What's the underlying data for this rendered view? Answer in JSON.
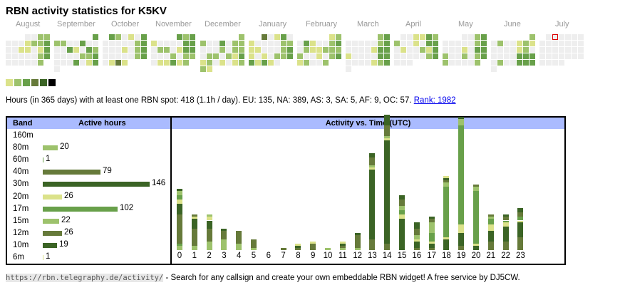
{
  "title": "RBN activity statistics for K5KV",
  "palette": [
    "#eeeeee",
    "#dbe28a",
    "#9dc26c",
    "#68a04a",
    "#667a3a",
    "#3b6425",
    "#000000"
  ],
  "today_marker_color": "#dd0000",
  "months": [
    {
      "label": "August",
      "rows": [
        [
          null,
          null,
          null,
          0,
          0,
          2,
          2
        ],
        [
          0,
          0,
          0,
          1,
          2,
          2,
          3
        ],
        [
          0,
          0,
          1,
          1,
          0,
          1,
          3
        ],
        [
          0,
          0,
          0,
          0,
          0,
          2,
          3
        ],
        [
          0,
          0,
          0,
          0,
          0,
          2,
          null
        ]
      ]
    },
    {
      "label": "September",
      "rows": [
        [
          null,
          null,
          null,
          null,
          null,
          null,
          3
        ],
        [
          2,
          2,
          0,
          0,
          3,
          0,
          0
        ],
        [
          0,
          0,
          3,
          1,
          0,
          3,
          2
        ],
        [
          0,
          0,
          0,
          0,
          2,
          2,
          3
        ],
        [
          0,
          0,
          0,
          3,
          0,
          1,
          3
        ],
        [
          0
        ]
      ]
    },
    {
      "label": "October",
      "rows": [
        [
          null,
          3,
          2,
          0,
          1,
          0,
          3
        ],
        [
          0,
          0,
          0,
          0,
          0,
          2,
          3
        ],
        [
          0,
          0,
          0,
          1,
          0,
          2,
          3
        ],
        [
          0,
          0,
          0,
          0,
          0,
          2,
          3
        ],
        [
          0,
          1,
          4,
          1
        ]
      ]
    },
    {
      "label": "November",
      "rows": [
        [
          null,
          null,
          null,
          null,
          3,
          2,
          3
        ],
        [
          1,
          0,
          0,
          0,
          0,
          3,
          3
        ],
        [
          0,
          2,
          2,
          0,
          1,
          3,
          3
        ],
        [
          0,
          0,
          0,
          2,
          0,
          2,
          2
        ],
        [
          0,
          1,
          1,
          3,
          1,
          2
        ]
      ]
    },
    {
      "label": "December",
      "rows": [
        [
          null,
          null,
          null,
          null,
          null,
          null,
          2
        ],
        [
          2,
          0,
          0,
          3,
          0,
          2,
          2
        ],
        [
          0,
          0,
          0,
          2,
          0,
          2,
          2
        ],
        [
          0,
          2,
          2,
          0,
          2,
          1,
          3
        ],
        [
          1,
          2,
          0,
          1,
          0,
          1,
          2
        ],
        [
          2,
          1
        ]
      ]
    },
    {
      "label": "January",
      "rows": [
        [
          null,
          null,
          4,
          0,
          1,
          3,
          0
        ],
        [
          1,
          0,
          0,
          0,
          0,
          2,
          2
        ],
        [
          1,
          1,
          0,
          0,
          0,
          2,
          3
        ],
        [
          1,
          0,
          1,
          0,
          2,
          2,
          3
        ],
        [
          3,
          1,
          3,
          1,
          0
        ]
      ]
    },
    {
      "label": "February",
      "rows": [
        [
          null,
          null,
          null,
          null,
          null,
          1,
          2
        ],
        [
          0,
          3,
          1,
          0,
          0,
          2,
          3
        ],
        [
          0,
          2,
          1,
          1,
          2,
          2,
          2
        ],
        [
          2,
          0,
          0,
          1,
          0,
          2,
          3
        ],
        [
          1,
          2,
          0,
          0,
          2
        ]
      ]
    },
    {
      "label": "March",
      "rows": [
        [
          null,
          null,
          null,
          null,
          null,
          2,
          3
        ],
        [
          0,
          0,
          0,
          0,
          0,
          2,
          3
        ],
        [
          0,
          0,
          0,
          0,
          1,
          3,
          3
        ],
        [
          1,
          0,
          0,
          0,
          0,
          3,
          3
        ],
        [
          0,
          0,
          0,
          0,
          1,
          2,
          3
        ],
        [
          0
        ]
      ]
    },
    {
      "label": "April",
      "rows": [
        [
          null,
          0,
          0,
          1,
          1,
          3,
          2
        ],
        [
          2,
          0,
          0,
          1,
          0,
          3,
          3
        ],
        [
          0,
          1,
          0,
          0,
          2,
          1,
          3
        ],
        [
          0,
          0,
          0,
          0,
          0,
          2,
          3
        ],
        [
          0,
          0,
          0
        ]
      ]
    },
    {
      "label": "May",
      "rows": [
        [
          null,
          null,
          null,
          0,
          0,
          2,
          3
        ],
        [
          0,
          0,
          0,
          0,
          0,
          2,
          3
        ],
        [
          0,
          0,
          0,
          1,
          0,
          3,
          3
        ],
        [
          2,
          0,
          0,
          2,
          0,
          2,
          3
        ],
        [
          2,
          0,
          0,
          0,
          0,
          2
        ]
      ]
    },
    {
      "label": "June",
      "rows": [
        [
          null,
          null,
          null,
          null,
          null,
          null,
          2
        ],
        [
          0,
          2,
          0,
          0,
          1,
          2,
          1
        ],
        [
          0,
          0,
          0,
          0,
          1,
          2,
          0
        ],
        [
          0,
          0,
          0,
          0,
          3,
          3,
          3
        ],
        [
          0,
          2,
          0,
          0,
          3,
          3,
          3
        ],
        [
          0
        ]
      ]
    },
    {
      "label": "July",
      "rows": [
        [
          null,
          0,
          "today",
          0,
          0,
          0,
          0
        ],
        [
          0,
          0,
          0,
          0,
          0,
          0,
          0
        ],
        [
          0,
          0,
          0,
          0,
          0,
          0,
          0
        ],
        [
          0,
          0,
          0,
          0,
          0,
          0,
          0
        ],
        [
          0,
          0,
          0,
          0
        ]
      ]
    }
  ],
  "legend_levels": [
    1,
    2,
    3,
    4,
    5,
    6
  ],
  "summary": {
    "text": "Hours (in 365 days) with at least one RBN spot: 418 (1.1h / day). EU: 135, NA: 389, AS: 3, SA: 5, AF: 9, OC: 57. ",
    "rank_link": "Rank: 1982"
  },
  "band_table": {
    "col_band": "Band",
    "col_hours": "Active hours",
    "max": 146,
    "rows": [
      {
        "band": "160m",
        "hours": null,
        "color": "#9dc26c"
      },
      {
        "band": "80m",
        "hours": 20,
        "color": "#9dc26c"
      },
      {
        "band": "60m",
        "hours": 1,
        "color": "#68a04a"
      },
      {
        "band": "40m",
        "hours": 79,
        "color": "#667a3a"
      },
      {
        "band": "30m",
        "hours": 146,
        "color": "#3b6425"
      },
      {
        "band": "20m",
        "hours": 26,
        "color": "#dbe28a"
      },
      {
        "band": "17m",
        "hours": 102,
        "color": "#68a04a"
      },
      {
        "band": "15m",
        "hours": 22,
        "color": "#9dc26c"
      },
      {
        "band": "12m",
        "hours": 26,
        "color": "#667a3a"
      },
      {
        "band": "10m",
        "hours": 19,
        "color": "#3b6425"
      },
      {
        "band": "6m",
        "hours": 1,
        "color": "#dbe28a"
      }
    ]
  },
  "chart_data": {
    "type": "bar",
    "title": "Activity vs. Time (UTC)",
    "stacked": true,
    "categories": [
      "0",
      "1",
      "2",
      "3",
      "4",
      "5",
      "6",
      "7",
      "8",
      "9",
      "10",
      "11",
      "12",
      "13",
      "14",
      "15",
      "16",
      "17",
      "18",
      "19",
      "20",
      "21",
      "22",
      "23"
    ],
    "ylim": [
      0,
      56
    ],
    "stacks": [
      [
        [
          "#9dc26c",
          2
        ],
        [
          "#68a04a",
          1
        ],
        [
          "#667a3a",
          14
        ],
        [
          "#3b6425",
          5
        ],
        [
          "#dbe28a",
          2
        ],
        [
          "#68a04a",
          2
        ],
        [
          "#9dc26c",
          2
        ],
        [
          "#3b6425",
          1
        ]
      ],
      [
        [
          "#9dc26c",
          2
        ],
        [
          "#667a3a",
          8
        ],
        [
          "#3b6425",
          5
        ],
        [
          "#dbe28a",
          1
        ],
        [
          "#667a3a",
          1
        ]
      ],
      [
        [
          "#9dc26c",
          4
        ],
        [
          "#667a3a",
          6
        ],
        [
          "#3b6425",
          4
        ],
        [
          "#dbe28a",
          2
        ],
        [
          "#9dc26c",
          1
        ]
      ],
      [
        [
          "#9dc26c",
          5
        ],
        [
          "#667a3a",
          4
        ],
        [
          "#3b6425",
          1
        ]
      ],
      [
        [
          "#9dc26c",
          3
        ],
        [
          "#667a3a",
          6
        ]
      ],
      [
        [
          "#9dc26c",
          1
        ],
        [
          "#667a3a",
          4
        ]
      ],
      [],
      [
        [
          "#667a3a",
          1
        ]
      ],
      [
        [
          "#667a3a",
          1
        ],
        [
          "#3b6425",
          1
        ],
        [
          "#dbe28a",
          1
        ]
      ],
      [
        [
          "#667a3a",
          3
        ],
        [
          "#dbe28a",
          1
        ]
      ],
      [
        [
          "#9dc26c",
          1
        ]
      ],
      [
        [
          "#9dc26c",
          1
        ],
        [
          "#667a3a",
          1
        ],
        [
          "#3b6425",
          1
        ],
        [
          "#dbe28a",
          1
        ]
      ],
      [
        [
          "#9dc26c",
          1
        ],
        [
          "#667a3a",
          6
        ],
        [
          "#3b6425",
          1
        ]
      ],
      [
        [
          "#667a3a",
          5
        ],
        [
          "#3b6425",
          33
        ],
        [
          "#dbe28a",
          1
        ],
        [
          "#9dc26c",
          1
        ],
        [
          "#667a3a",
          4
        ],
        [
          "#3b6425",
          2
        ]
      ],
      [
        [
          "#667a3a",
          3
        ],
        [
          "#3b6425",
          49
        ],
        [
          "#dbe28a",
          1
        ],
        [
          "#9dc26c",
          1
        ],
        [
          "#667a3a",
          5
        ],
        [
          "#3b6425",
          5
        ]
      ],
      [
        [
          "#3b6425",
          15
        ],
        [
          "#dbe28a",
          2
        ],
        [
          "#68a04a",
          2
        ],
        [
          "#9dc26c",
          2
        ],
        [
          "#667a3a",
          3
        ],
        [
          "#3b6425",
          2
        ]
      ],
      [
        [
          "#667a3a",
          1
        ],
        [
          "#3b6425",
          3
        ],
        [
          "#dbe28a",
          1
        ],
        [
          "#9dc26c",
          2
        ],
        [
          "#667a3a",
          3
        ],
        [
          "#3b6425",
          3
        ]
      ],
      [
        [
          "#667a3a",
          1
        ],
        [
          "#3b6425",
          2
        ],
        [
          "#dbe28a",
          1
        ],
        [
          "#68a04a",
          4
        ],
        [
          "#9dc26c",
          5
        ],
        [
          "#667a3a",
          2
        ],
        [
          "#3b6425",
          1
        ]
      ],
      [
        [
          "#3b6425",
          5
        ],
        [
          "#dbe28a",
          1
        ],
        [
          "#68a04a",
          24
        ],
        [
          "#9dc26c",
          2
        ],
        [
          "#667a3a",
          1
        ],
        [
          "#3b6425",
          1
        ],
        [
          "#dbe28a",
          1
        ]
      ],
      [
        [
          "#667a3a",
          2
        ],
        [
          "#3b6425",
          6
        ],
        [
          "#dbe28a",
          4
        ],
        [
          "#68a04a",
          47
        ],
        [
          "#9dc26c",
          3
        ],
        [
          "#3b6425",
          1
        ]
      ],
      [
        [
          "#3b6425",
          2
        ],
        [
          "#dbe28a",
          1
        ],
        [
          "#68a04a",
          25
        ],
        [
          "#9dc26c",
          2
        ],
        [
          "#667a3a",
          1
        ]
      ],
      [
        [
          "#667a3a",
          4
        ],
        [
          "#3b6425",
          5
        ],
        [
          "#dbe28a",
          3
        ],
        [
          "#68a04a",
          3
        ],
        [
          "#9dc26c",
          1
        ],
        [
          "#667a3a",
          1
        ]
      ],
      [
        [
          "#667a3a",
          4
        ],
        [
          "#3b6425",
          7
        ],
        [
          "#dbe28a",
          2
        ],
        [
          "#68a04a",
          1
        ],
        [
          "#667a3a",
          2
        ],
        [
          "#3b6425",
          1
        ]
      ],
      [
        [
          "#667a3a",
          6
        ],
        [
          "#3b6425",
          7
        ],
        [
          "#dbe28a",
          1
        ],
        [
          "#68a04a",
          2
        ],
        [
          "#667a3a",
          2
        ],
        [
          "#3b6425",
          2
        ]
      ]
    ]
  },
  "footer": {
    "url": "https://rbn.telegraphy.de/activity/",
    "text": " - Search for any callsign and create your own embeddable RBN widget! A free service by DJ5CW."
  }
}
